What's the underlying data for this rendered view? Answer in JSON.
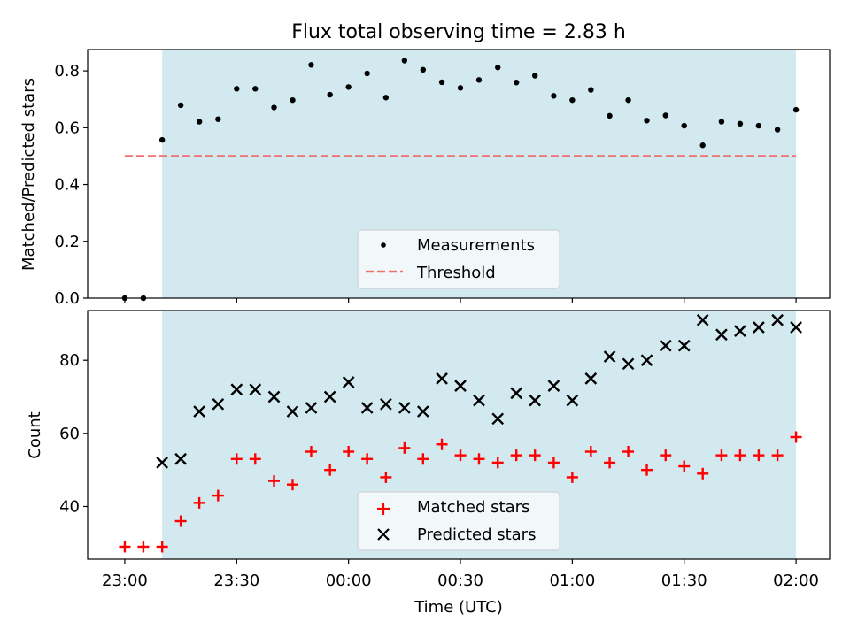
{
  "figure": {
    "title": "Flux total observing time = 2.83 h"
  },
  "chart_data": [
    {
      "type": "scatter",
      "ylabel": "Matched/Predicted stars",
      "ylim": [
        0,
        0.875
      ],
      "yticks": [
        "0.0",
        "0.2",
        "0.4",
        "0.6",
        "0.8"
      ],
      "ytick_values": [
        0,
        0.2,
        0.4,
        0.6,
        0.8
      ],
      "x_hours_range": [
        -0.166,
        3.15
      ],
      "shaded_span_hours": [
        0.167,
        3.0
      ],
      "shade_color": "#d3e9f0",
      "series": [
        {
          "name": "Measurements",
          "color": "#000000",
          "marker": "dot",
          "x_hours": [
            0,
            0.083,
            0.167,
            0.25,
            0.333,
            0.417,
            0.5,
            0.583,
            0.667,
            0.75,
            0.833,
            0.917,
            1.0,
            1.083,
            1.167,
            1.25,
            1.333,
            1.417,
            1.5,
            1.583,
            1.667,
            1.75,
            1.833,
            1.917,
            2.0,
            2.083,
            2.167,
            2.25,
            2.333,
            2.417,
            2.5,
            2.583,
            2.667,
            2.75,
            2.833,
            2.917,
            3.0
          ],
          "y": [
            0.0,
            0.0,
            0.557,
            0.679,
            0.621,
            0.63,
            0.737,
            0.737,
            0.671,
            0.697,
            0.821,
            0.716,
            0.743,
            0.791,
            0.706,
            0.836,
            0.804,
            0.76,
            0.74,
            0.768,
            0.812,
            0.759,
            0.783,
            0.712,
            0.697,
            0.733,
            0.642,
            0.697,
            0.625,
            0.643,
            0.607,
            0.538,
            0.621,
            0.614,
            0.607,
            0.593,
            0.663
          ]
        },
        {
          "name": "Threshold",
          "color": "#f07070",
          "style": "dashed",
          "x_hours": [
            0,
            3.0
          ],
          "y": [
            0.5,
            0.5
          ]
        }
      ],
      "legend": {
        "location": "lower-center",
        "entries": [
          "Measurements",
          "Threshold"
        ]
      }
    },
    {
      "type": "scatter",
      "ylabel": "Count",
      "xlabel": "Time (UTC)",
      "ylim": [
        25.6,
        93.6
      ],
      "yticks": [
        "40",
        "60",
        "80"
      ],
      "ytick_values": [
        40,
        60,
        80
      ],
      "x_hours_range": [
        -0.166,
        3.15
      ],
      "xticks": [
        "23:00",
        "23:30",
        "00:00",
        "00:30",
        "01:00",
        "01:30",
        "02:00"
      ],
      "xtick_hours": [
        0,
        0.5,
        1.0,
        1.5,
        2.0,
        2.5,
        3.0
      ],
      "shaded_span_hours": [
        0.167,
        3.0
      ],
      "shade_color": "#d3e9f0",
      "series": [
        {
          "name": "Matched stars",
          "color": "#ff0000",
          "marker": "plus",
          "x_hours": [
            0,
            0.083,
            0.167,
            0.25,
            0.333,
            0.417,
            0.5,
            0.583,
            0.667,
            0.75,
            0.833,
            0.917,
            1.0,
            1.083,
            1.167,
            1.25,
            1.333,
            1.417,
            1.5,
            1.583,
            1.667,
            1.75,
            1.833,
            1.917,
            2.0,
            2.083,
            2.167,
            2.25,
            2.333,
            2.417,
            2.5,
            2.583,
            2.667,
            2.75,
            2.833,
            2.917,
            3.0
          ],
          "y": [
            29,
            29,
            29,
            36,
            41,
            43,
            53,
            53,
            47,
            46,
            55,
            50,
            55,
            53,
            48,
            56,
            53,
            57,
            54,
            53,
            52,
            54,
            54,
            52,
            48,
            55,
            52,
            55,
            50,
            54,
            51,
            49,
            54,
            54,
            54,
            54,
            59
          ]
        },
        {
          "name": "Predicted stars",
          "color": "#000000",
          "marker": "x",
          "x_hours": [
            0.167,
            0.25,
            0.333,
            0.417,
            0.5,
            0.583,
            0.667,
            0.75,
            0.833,
            0.917,
            1.0,
            1.083,
            1.167,
            1.25,
            1.333,
            1.417,
            1.5,
            1.583,
            1.667,
            1.75,
            1.833,
            1.917,
            2.0,
            2.083,
            2.167,
            2.25,
            2.333,
            2.417,
            2.5,
            2.583,
            2.667,
            2.75,
            2.833,
            2.917,
            3.0
          ],
          "y": [
            52,
            53,
            66,
            68,
            72,
            72,
            70,
            66,
            67,
            70,
            74,
            67,
            68,
            67,
            66,
            75,
            73,
            69,
            64,
            71,
            69,
            73,
            69,
            75,
            81,
            79,
            80,
            84,
            84,
            91,
            87,
            88,
            89,
            91,
            89
          ]
        }
      ],
      "legend": {
        "location": "lower-center",
        "entries": [
          "Matched stars",
          "Predicted stars"
        ]
      }
    }
  ]
}
